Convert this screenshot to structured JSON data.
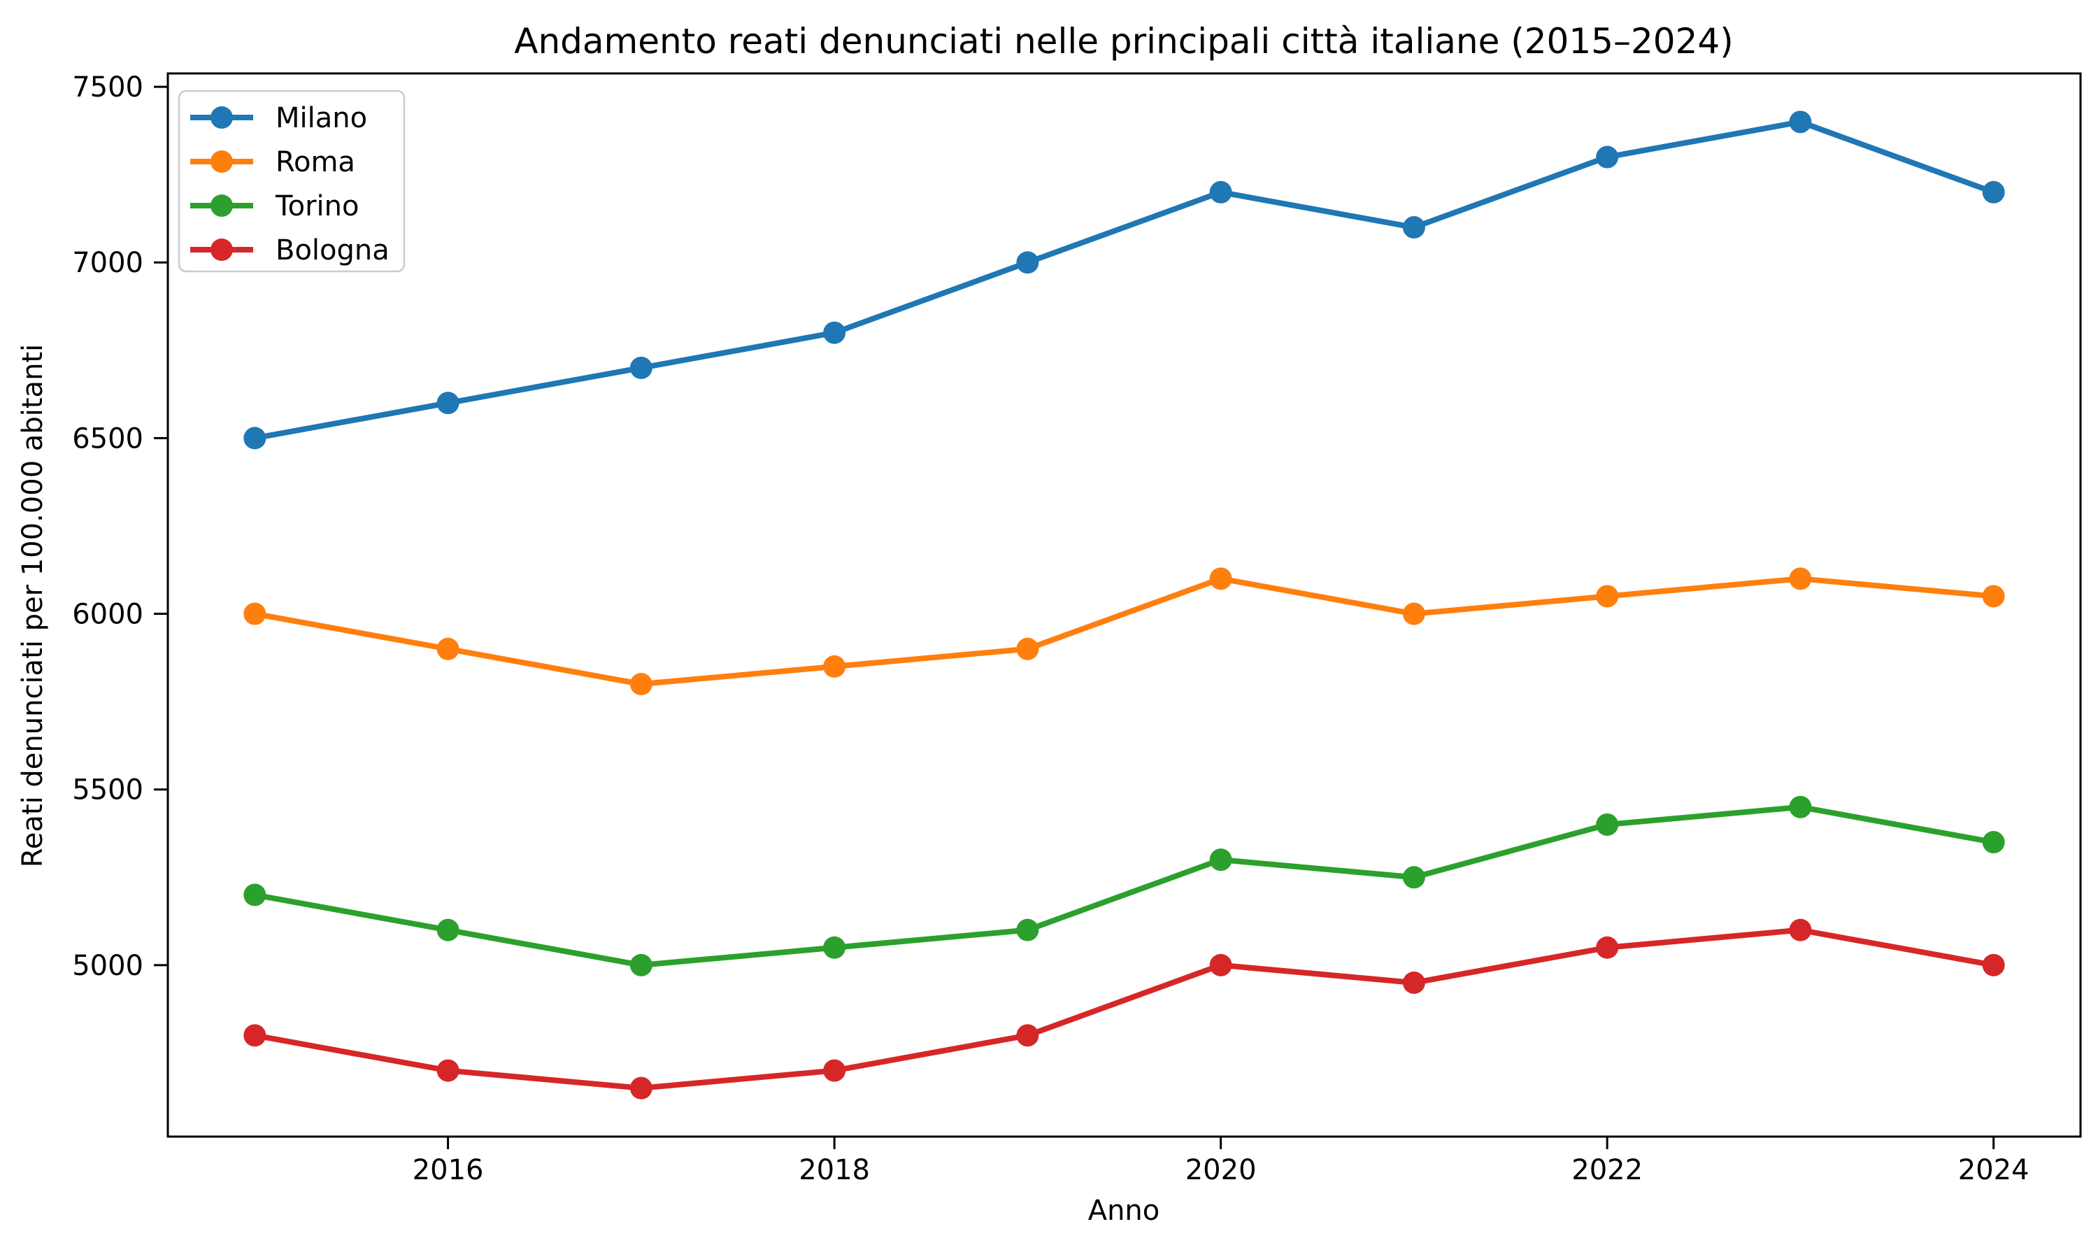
{
  "figure": {
    "background_color": "#ffffff",
    "text_color": "#000000",
    "spine_color": "#000000",
    "legend_border_color": "#cccccc",
    "legend_background_color": "#ffffff"
  },
  "chart_data": {
    "type": "line",
    "title": "Andamento reati denunciati nelle principali città italiane (2015–2024)",
    "xlabel": "Anno",
    "ylabel": "Reati denunciati per 100.000 abitanti",
    "x": [
      2015,
      2016,
      2017,
      2018,
      2019,
      2020,
      2021,
      2022,
      2023,
      2024
    ],
    "series": [
      {
        "name": "Milano",
        "color": "#1f77b4",
        "values": [
          6500,
          6600,
          6700,
          6800,
          7000,
          7200,
          7100,
          7300,
          7400,
          7200
        ]
      },
      {
        "name": "Roma",
        "color": "#ff7f0e",
        "values": [
          6000,
          5900,
          5800,
          5850,
          5900,
          6100,
          6000,
          6050,
          6100,
          6050
        ]
      },
      {
        "name": "Torino",
        "color": "#2ca02c",
        "values": [
          5200,
          5100,
          5000,
          5050,
          5100,
          5300,
          5250,
          5400,
          5450,
          5350
        ]
      },
      {
        "name": "Bologna",
        "color": "#d62728",
        "values": [
          4800,
          4700,
          4650,
          4700,
          4800,
          5000,
          4950,
          5050,
          5100,
          5000
        ]
      }
    ],
    "x_ticks": [
      2016,
      2018,
      2020,
      2022,
      2024
    ],
    "y_ticks": [
      5000,
      5500,
      6000,
      6500,
      7000,
      7500
    ],
    "xlim": [
      2014.55,
      2024.45
    ],
    "ylim": [
      4512,
      7538
    ],
    "grid": false,
    "marker": "o",
    "line_width": 8,
    "marker_radius": 16,
    "legend_position": "upper left"
  }
}
